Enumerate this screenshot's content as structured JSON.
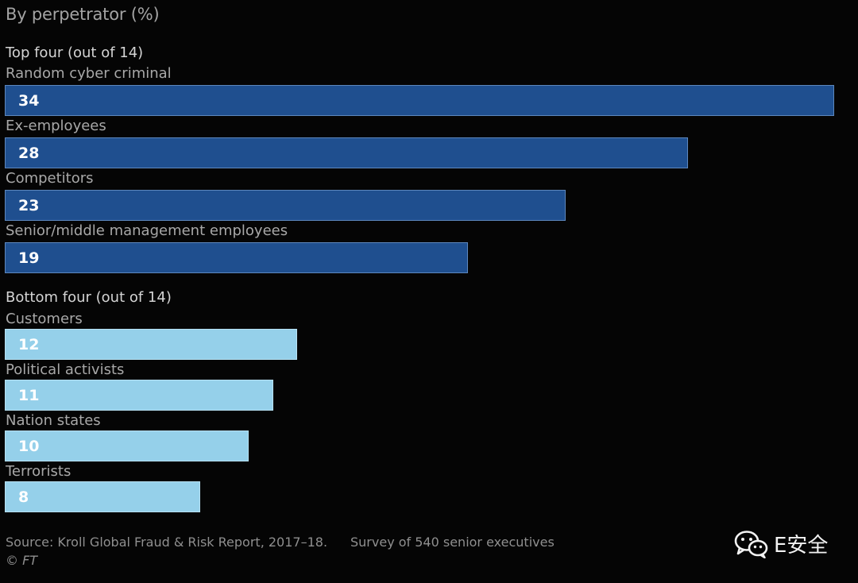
{
  "chart_data": {
    "type": "bar",
    "orientation": "horizontal",
    "subtitle": "By perpetrator (%)",
    "groups": [
      {
        "title": "Top four (out of 14)",
        "color": "#1f4f8f",
        "categories": [
          "Random cyber criminal",
          "Ex-employees",
          "Competitors",
          "Senior/middle management employees"
        ],
        "values": [
          34,
          28,
          23,
          19
        ]
      },
      {
        "title": "Bottom four (out of 14)",
        "color": "#95d0ea",
        "categories": [
          "Customers",
          "Political activists",
          "Nation states",
          "Terrorists"
        ],
        "values": [
          12,
          11,
          10,
          8
        ]
      }
    ],
    "xlim": [
      0,
      34
    ],
    "grid": false,
    "legend": "none"
  },
  "footer": {
    "source": "Source: Kroll Global Fraud & Risk Report, 2017–18.",
    "survey": "Survey of 540 senior executives",
    "copyright": "© FT"
  },
  "watermark": {
    "text": "E安全",
    "icon": "wechat-icon"
  }
}
